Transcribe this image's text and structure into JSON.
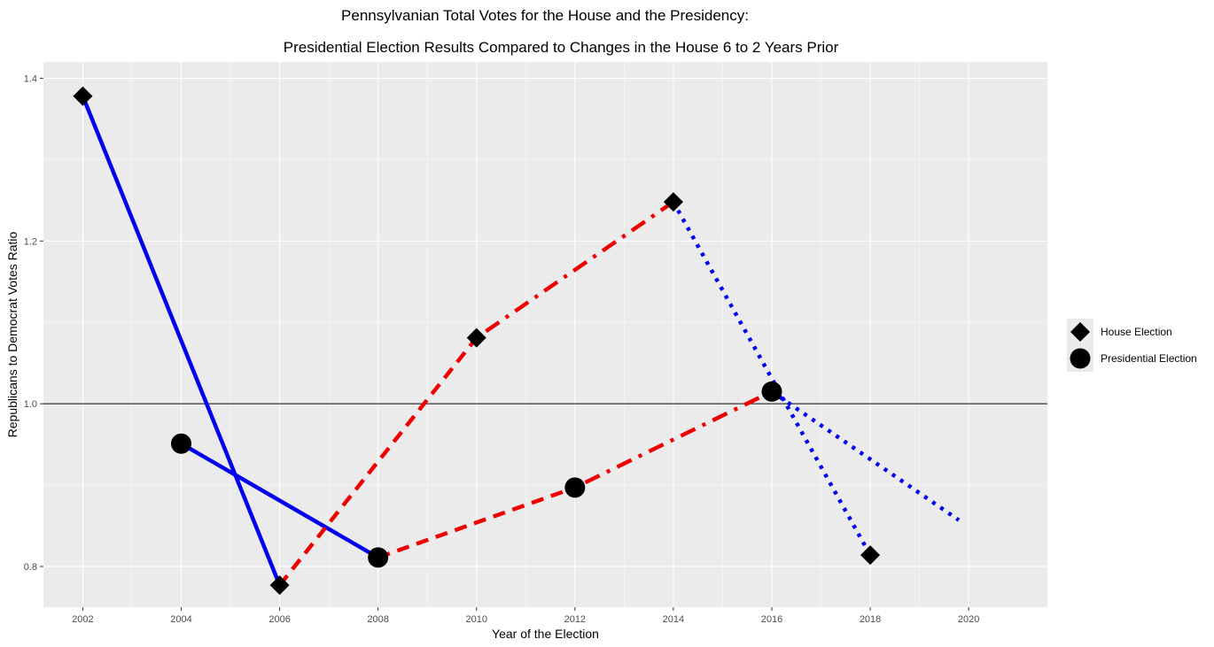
{
  "chart_data": {
    "type": "line",
    "title": "Pennsylvanian Total Votes for the House and the Presidency:",
    "subtitle": "Presidential Election Results Compared to Changes in the House 6 to 2 Years Prior",
    "xlabel": "Year of the Election",
    "ylabel": "Republicans to Democrat Votes Ratio",
    "xlim": [
      2001.2,
      2021.6
    ],
    "ylim": [
      0.75,
      1.42
    ],
    "x_ticks": [
      "2002",
      "2004",
      "2006",
      "2008",
      "2010",
      "2012",
      "2014",
      "2016",
      "2018",
      "2020"
    ],
    "y_ticks": [
      "0.8",
      "1.0",
      "1.2",
      "1.4"
    ],
    "reference_line": 1.0,
    "grid": true,
    "legend_position": "right",
    "legend": [
      {
        "label": "House Election",
        "shape": "diamond"
      },
      {
        "label": "Presidential Election",
        "shape": "circle"
      }
    ],
    "house_points": [
      {
        "x": 2002,
        "y": 1.378
      },
      {
        "x": 2006,
        "y": 0.777
      },
      {
        "x": 2010,
        "y": 1.081
      },
      {
        "x": 2014,
        "y": 1.248
      },
      {
        "x": 2018,
        "y": 0.814
      }
    ],
    "presidential_points": [
      {
        "x": 2004,
        "y": 0.951
      },
      {
        "x": 2008,
        "y": 0.811
      },
      {
        "x": 2012,
        "y": 0.897
      },
      {
        "x": 2016,
        "y": 1.015
      }
    ],
    "segments": [
      {
        "x1": 2002,
        "y1": 1.378,
        "x2": 2006,
        "y2": 0.777,
        "color": "#0000ee",
        "style": "solid"
      },
      {
        "x1": 2004,
        "y1": 0.951,
        "x2": 2008,
        "y2": 0.811,
        "color": "#0000ee",
        "style": "solid"
      },
      {
        "x1": 2006,
        "y1": 0.777,
        "x2": 2010,
        "y2": 1.081,
        "color": "#ee0000",
        "style": "dashed"
      },
      {
        "x1": 2008,
        "y1": 0.811,
        "x2": 2012,
        "y2": 0.897,
        "color": "#ee0000",
        "style": "dashed"
      },
      {
        "x1": 2010,
        "y1": 1.081,
        "x2": 2014,
        "y2": 1.248,
        "color": "#ee0000",
        "style": "dotdash"
      },
      {
        "x1": 2012,
        "y1": 0.897,
        "x2": 2016,
        "y2": 1.015,
        "color": "#ee0000",
        "style": "dotdash"
      },
      {
        "x1": 2014,
        "y1": 1.248,
        "x2": 2018,
        "y2": 0.814,
        "color": "#0000ee",
        "style": "dotted"
      },
      {
        "x1": 2016,
        "y1": 1.015,
        "x2": 2019.8,
        "y2": 0.857,
        "color": "#0000ee",
        "style": "dotted"
      }
    ],
    "colors": {
      "panel": "#ebebeb",
      "grid": "#ffffff",
      "republican": "#ee0000",
      "democrat": "#0000ee",
      "marker": "#000000"
    }
  }
}
